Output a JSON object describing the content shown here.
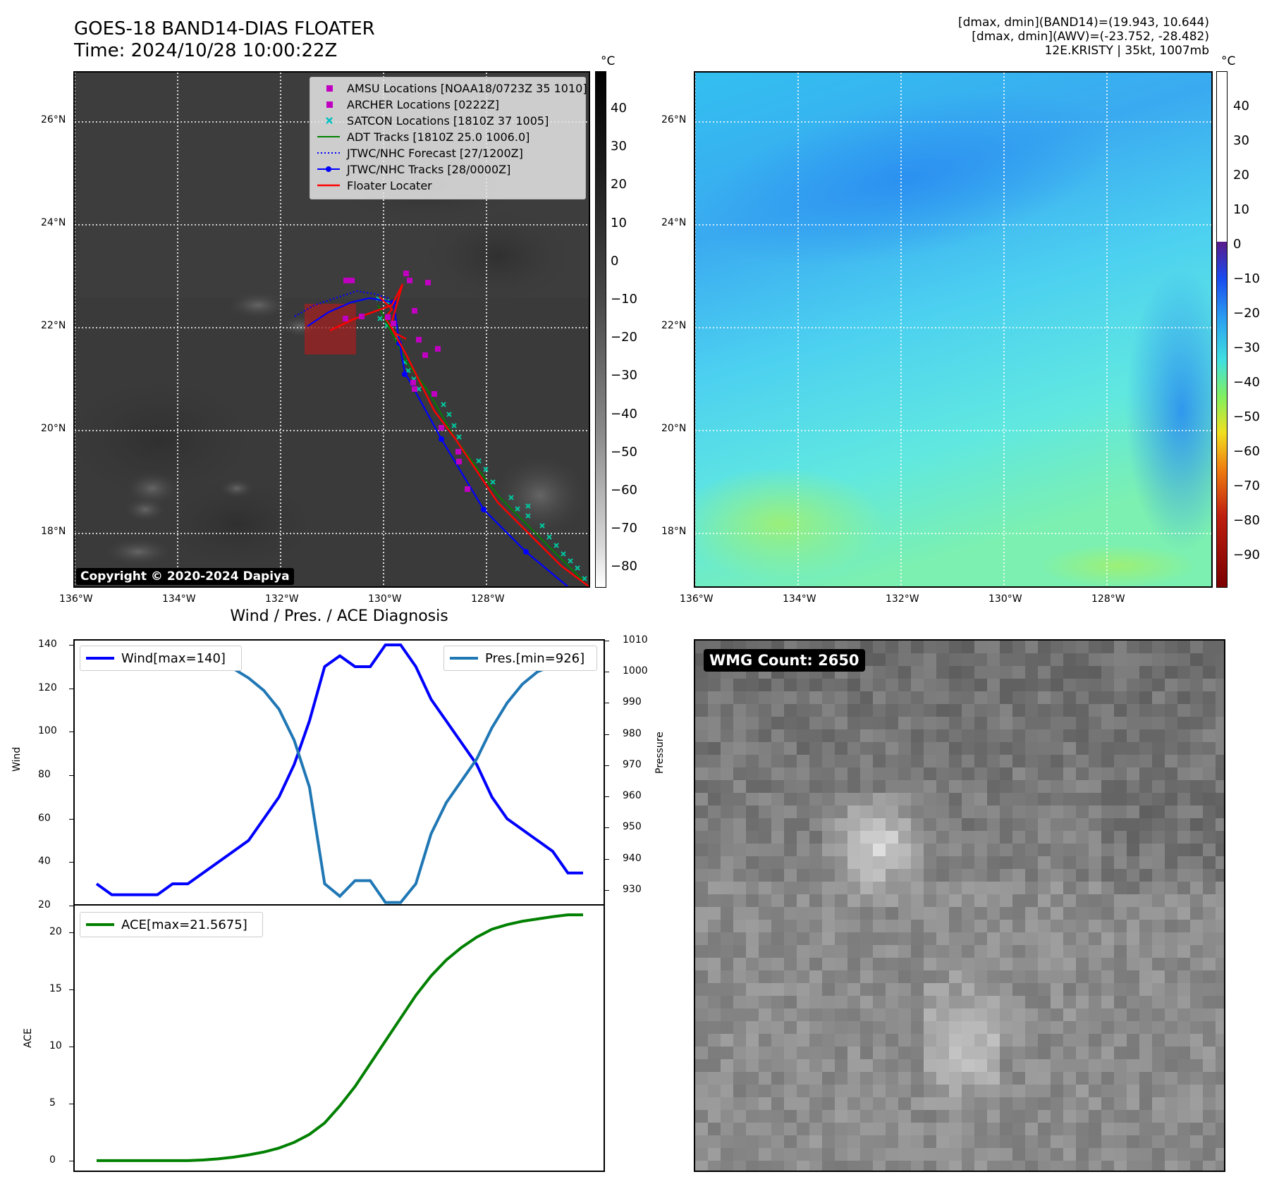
{
  "header": {
    "title_line1": "GOES-18 BAND14-DIAS FLOATER",
    "title_line2": "Time: 2024/10/28 10:00:22Z",
    "info_line1": "[dmax, dmin](BAND14)=(19.943, 10.644)",
    "info_line2": "[dmax, dmin](AWV)=(-23.752, -28.482)",
    "info_line3": "12E.KRISTY | 35kt, 1007mb"
  },
  "map": {
    "lat_labels": [
      "26°N",
      "24°N",
      "22°N",
      "20°N",
      "18°N"
    ],
    "lon_labels": [
      "136°W",
      "134°W",
      "132°W",
      "130°W",
      "128°W"
    ],
    "copyright": "Copyright © 2020-2024 Dapiya",
    "legend": [
      {
        "label": "AMSU Locations [NOAA18/0723Z 35 1010]",
        "symbol": "square",
        "color": "#c000c0"
      },
      {
        "label": "ARCHER Locations [0222Z]",
        "symbol": "square",
        "color": "#c000c0"
      },
      {
        "label": "SATCON Locations [1810Z 37 1005]",
        "symbol": "x",
        "color": "#00c0c0"
      },
      {
        "label": "ADT Tracks [1810Z 25.0 1006.0]",
        "symbol": "line",
        "color": "#008000"
      },
      {
        "label": "JTWC/NHC Forecast [27/1200Z]",
        "symbol": "dotted",
        "color": "#0000ff"
      },
      {
        "label": "JTWC/NHC Tracks [28/0000Z]",
        "symbol": "line-dot",
        "color": "#0000ff"
      },
      {
        "label": "Floater Locater",
        "symbol": "line",
        "color": "#ff0000"
      }
    ]
  },
  "colorbar_gray": {
    "unit": "°C",
    "ticks": [
      "40",
      "30",
      "20",
      "10",
      "0",
      "−10",
      "−20",
      "−30",
      "−40",
      "−50",
      "−60",
      "−70",
      "−80"
    ]
  },
  "colorbar_awv": {
    "unit": "°C",
    "ticks": [
      "40",
      "30",
      "20",
      "10",
      "0",
      "−10",
      "−20",
      "−30",
      "−40",
      "−50",
      "−60",
      "−70",
      "−80",
      "−90"
    ]
  },
  "wmg": {
    "label": "WMG Count: 2650"
  },
  "chart_title": "Wind / Pres. / ACE Diagnosis",
  "chart_data": [
    {
      "type": "line",
      "ylabel": "Wind",
      "y2label": "Pressure",
      "ylim": [
        20,
        142
      ],
      "y2lim": [
        925,
        1010
      ],
      "yticks": [
        "140",
        "120",
        "100",
        "80",
        "60",
        "40",
        "20"
      ],
      "y2ticks": [
        "1010",
        "1000",
        "990",
        "980",
        "970",
        "960",
        "950",
        "940",
        "930"
      ],
      "x": [
        0,
        1,
        2,
        3,
        4,
        5,
        6,
        7,
        8,
        9,
        10,
        11,
        12,
        13,
        14,
        15,
        16,
        17,
        18,
        19,
        20,
        21,
        22,
        23,
        24,
        25,
        26,
        27,
        28,
        29,
        30,
        31,
        32
      ],
      "series": [
        {
          "name": "Wind[max=140]",
          "axis": "left",
          "color": "#0000ff",
          "values": [
            30,
            25,
            25,
            25,
            25,
            30,
            30,
            35,
            40,
            45,
            50,
            60,
            70,
            85,
            105,
            130,
            135,
            130,
            130,
            140,
            140,
            130,
            115,
            105,
            95,
            85,
            70,
            60,
            55,
            50,
            45,
            35,
            35
          ]
        },
        {
          "name": "Pres.[min=926]",
          "axis": "right",
          "color": "#1f77b4",
          "values": [
            1004,
            1004,
            1004,
            1005,
            1005,
            1005,
            1004,
            1004,
            1003,
            1001,
            998,
            994,
            988,
            978,
            963,
            932,
            928,
            933,
            933,
            926,
            926,
            932,
            948,
            958,
            965,
            972,
            982,
            990,
            996,
            1000,
            1002,
            1004,
            1005
          ]
        }
      ]
    },
    {
      "type": "line",
      "ylabel": "ACE",
      "ylim": [
        -1,
        22.5
      ],
      "yticks": [
        "20",
        "15",
        "10",
        "5",
        "0"
      ],
      "x": [
        0,
        1,
        2,
        3,
        4,
        5,
        6,
        7,
        8,
        9,
        10,
        11,
        12,
        13,
        14,
        15,
        16,
        17,
        18,
        19,
        20,
        21,
        22,
        23,
        24,
        25,
        26,
        27,
        28,
        29,
        30,
        31,
        32
      ],
      "series": [
        {
          "name": "ACE[max=21.5675]",
          "axis": "left",
          "color": "#008000",
          "values": [
            0,
            0,
            0,
            0,
            0,
            0,
            0,
            0.05,
            0.15,
            0.3,
            0.5,
            0.75,
            1.1,
            1.6,
            2.3,
            3.3,
            4.8,
            6.5,
            8.5,
            10.5,
            12.5,
            14.5,
            16.2,
            17.6,
            18.7,
            19.6,
            20.3,
            20.7,
            21.0,
            21.2,
            21.4,
            21.5675,
            21.5675
          ]
        }
      ]
    }
  ]
}
